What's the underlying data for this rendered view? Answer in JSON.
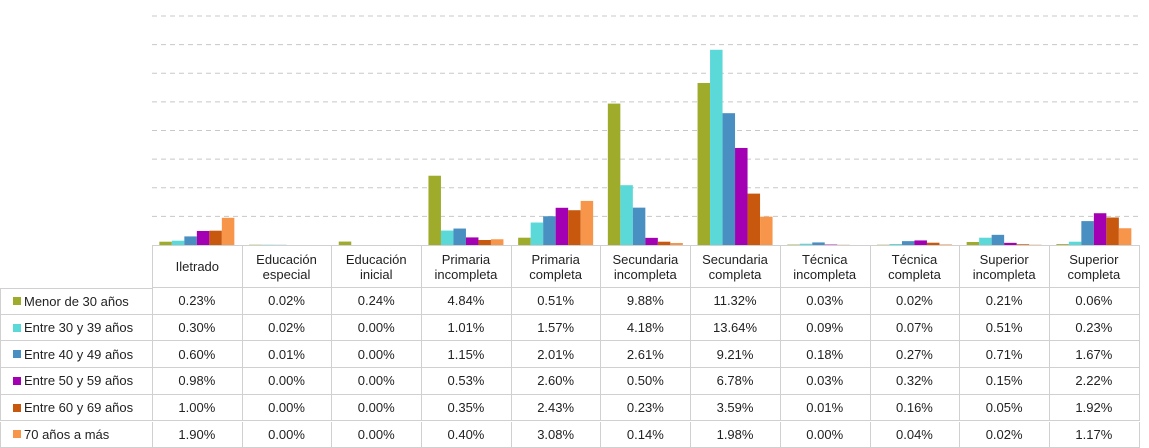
{
  "chart_data": {
    "type": "bar",
    "categories": [
      "Iletrado",
      "Educación especial",
      "Educación inicial",
      "Primaria incompleta",
      "Primaria completa",
      "Secundaria incompleta",
      "Secundaria completa",
      "Técnica incompleta",
      "Técnica completa",
      "Superior incompleta",
      "Superior completa"
    ],
    "series": [
      {
        "name": "Menor de 30 años",
        "color": "#9eab2b",
        "values": [
          0.23,
          0.02,
          0.24,
          4.84,
          0.51,
          9.88,
          11.32,
          0.03,
          0.02,
          0.21,
          0.06
        ],
        "value_labels": [
          "0.23%",
          "0.02%",
          "0.24%",
          "4.84%",
          "0.51%",
          "9.88%",
          "11.32%",
          "0.03%",
          "0.02%",
          "0.21%",
          "0.06%"
        ]
      },
      {
        "name": "Entre 30 y 39 años",
        "color": "#5bd9d9",
        "values": [
          0.3,
          0.02,
          0.0,
          1.01,
          1.57,
          4.18,
          13.64,
          0.09,
          0.07,
          0.51,
          0.23
        ],
        "value_labels": [
          "0.30%",
          "0.02%",
          "0.00%",
          "1.01%",
          "1.57%",
          "4.18%",
          "13.64%",
          "0.09%",
          "0.07%",
          "0.51%",
          "0.23%"
        ]
      },
      {
        "name": "Entre 40 y 49 años",
        "color": "#4a8fc1",
        "values": [
          0.6,
          0.01,
          0.0,
          1.15,
          2.01,
          2.61,
          9.21,
          0.18,
          0.27,
          0.71,
          1.67
        ],
        "value_labels": [
          "0.60%",
          "0.01%",
          "0.00%",
          "1.15%",
          "2.01%",
          "2.61%",
          "9.21%",
          "0.18%",
          "0.27%",
          "0.71%",
          "1.67%"
        ]
      },
      {
        "name": "Entre 50 y 59 años",
        "color": "#a300b3",
        "values": [
          0.98,
          0.0,
          0.0,
          0.53,
          2.6,
          0.5,
          6.78,
          0.03,
          0.32,
          0.15,
          2.22
        ],
        "value_labels": [
          "0.98%",
          "0.00%",
          "0.00%",
          "0.53%",
          "2.60%",
          "0.50%",
          "6.78%",
          "0.03%",
          "0.32%",
          "0.15%",
          "2.22%"
        ]
      },
      {
        "name": "Entre 60 y 69 años",
        "color": "#c7580e",
        "values": [
          1.0,
          0.0,
          0.0,
          0.35,
          2.43,
          0.23,
          3.59,
          0.01,
          0.16,
          0.05,
          1.92
        ],
        "value_labels": [
          "1.00%",
          "0.00%",
          "0.00%",
          "0.35%",
          "2.43%",
          "0.23%",
          "3.59%",
          "0.01%",
          "0.16%",
          "0.05%",
          "1.92%"
        ]
      },
      {
        "name": "70 años a más",
        "color": "#f7964a",
        "values": [
          1.9,
          0.0,
          0.0,
          0.4,
          3.08,
          0.14,
          1.98,
          0.0,
          0.04,
          0.02,
          1.17
        ],
        "value_labels": [
          "1.90%",
          "0.00%",
          "0.00%",
          "0.40%",
          "3.08%",
          "0.14%",
          "1.98%",
          "0.00%",
          "0.04%",
          "0.02%",
          "1.17%"
        ]
      }
    ],
    "ylim": [
      0,
      16
    ],
    "yticks": [
      0,
      2,
      4,
      6,
      8,
      10,
      12,
      14,
      16
    ],
    "grid": true
  }
}
